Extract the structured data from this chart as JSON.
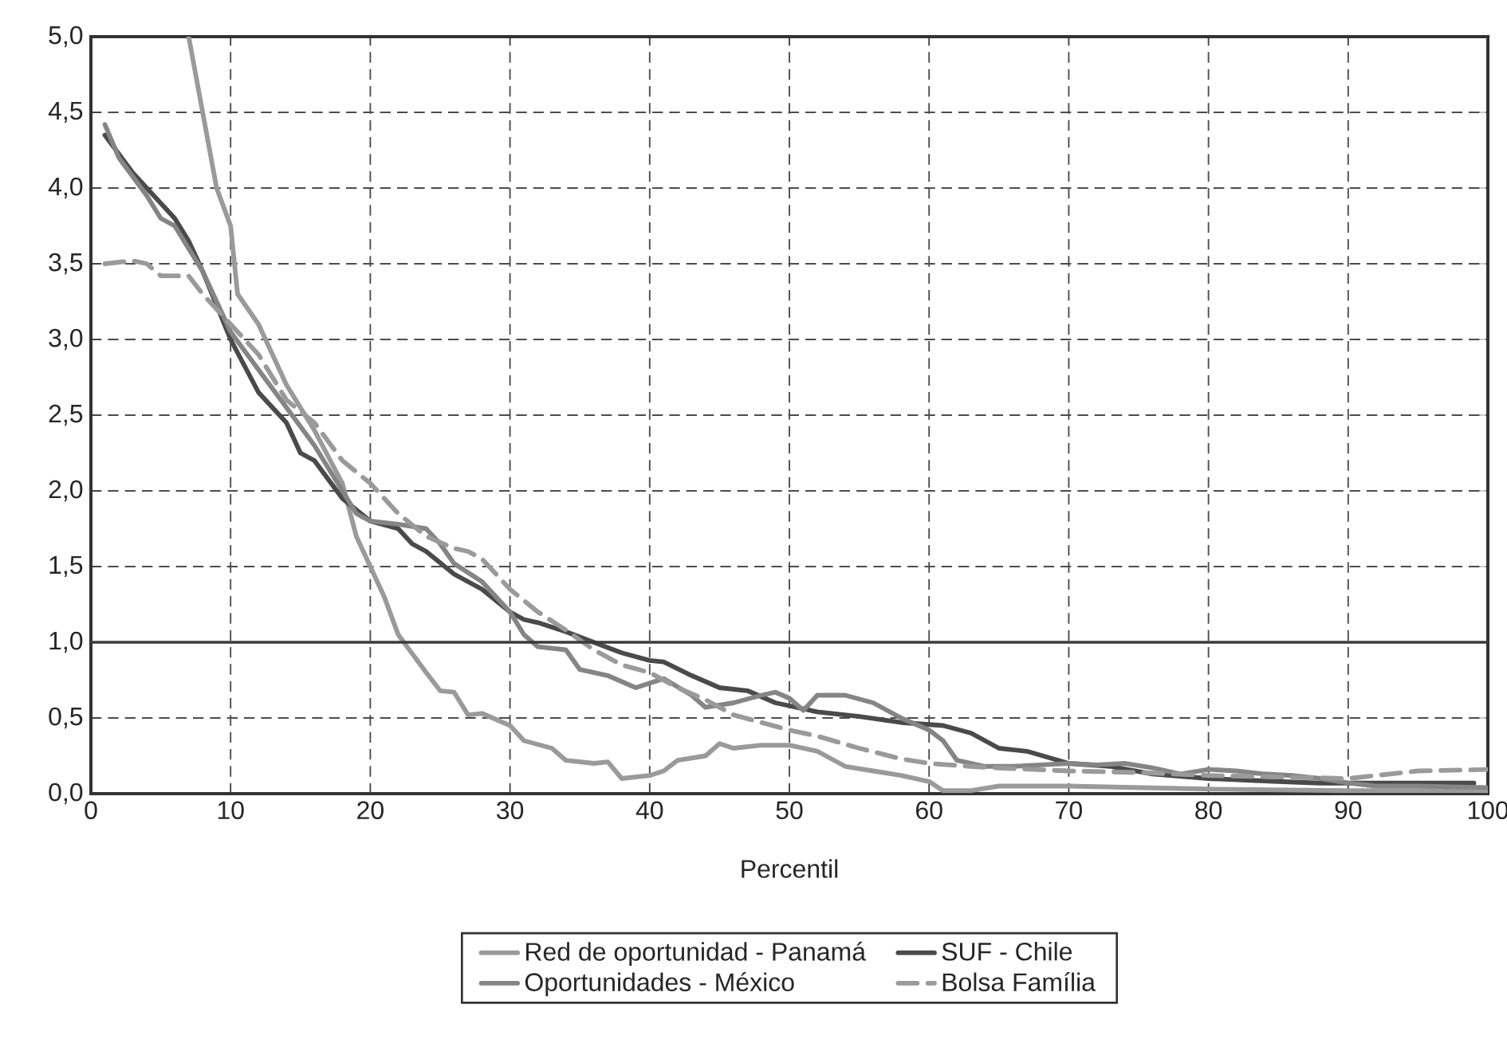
{
  "chart_data": {
    "type": "line",
    "xlabel": "Percentil",
    "xlim": [
      0,
      100
    ],
    "xticks": [
      0,
      10,
      20,
      30,
      40,
      50,
      60,
      70,
      80,
      90,
      100
    ],
    "ylim": [
      0,
      5
    ],
    "yticks": [
      {
        "value": 0,
        "label": "0,0"
      },
      {
        "value": 0.5,
        "label": "0,5"
      },
      {
        "value": 1,
        "label": "1,0"
      },
      {
        "value": 1.5,
        "label": "1,5"
      },
      {
        "value": 2,
        "label": "2,0"
      },
      {
        "value": 2.5,
        "label": "2,5"
      },
      {
        "value": 3,
        "label": "3,0"
      },
      {
        "value": 3.5,
        "label": "3,5"
      },
      {
        "value": 4,
        "label": "4,0"
      },
      {
        "value": 4.5,
        "label": "4,5"
      },
      {
        "value": 5,
        "label": "5,0"
      }
    ],
    "grid": true,
    "legend": "bottom",
    "marker": "none",
    "ref_lines": [
      {
        "axis": "y",
        "value": 1,
        "color": "#3a3a3a",
        "line_style": "solid"
      }
    ],
    "series": [
      {
        "name": "Red de oportunidad - Panamá",
        "color": "#9a9a9a",
        "line_style": "solid",
        "x": [
          7,
          8,
          9,
          10,
          10.5,
          12,
          14,
          16,
          18,
          19,
          20,
          21,
          22,
          24,
          25,
          26,
          27,
          28,
          30,
          31,
          33,
          34,
          36,
          37,
          38,
          40,
          41,
          42,
          44,
          45,
          46,
          48,
          50,
          52,
          54,
          56,
          58,
          60,
          61,
          63,
          65,
          70,
          80,
          90,
          100
        ],
        "values": [
          5.0,
          4.5,
          4.0,
          3.75,
          3.3,
          3.1,
          2.7,
          2.4,
          2.05,
          1.7,
          1.5,
          1.3,
          1.05,
          0.8,
          0.68,
          0.67,
          0.52,
          0.53,
          0.45,
          0.35,
          0.3,
          0.22,
          0.2,
          0.21,
          0.1,
          0.12,
          0.15,
          0.22,
          0.25,
          0.33,
          0.3,
          0.32,
          0.32,
          0.28,
          0.18,
          0.15,
          0.12,
          0.08,
          0.02,
          0.02,
          0.05,
          0.05,
          0.03,
          0.02,
          0.02
        ]
      },
      {
        "name": "SUF - Chile",
        "color": "#4a4a4a",
        "line_style": "solid",
        "x": [
          1,
          3,
          4,
          6,
          7,
          8,
          10,
          12,
          14,
          15,
          16,
          18,
          20,
          22,
          23,
          24,
          26,
          28,
          30,
          31,
          32,
          34,
          36,
          38,
          40,
          41,
          43,
          45,
          47,
          49,
          52,
          55,
          58,
          61,
          63,
          65,
          67,
          70,
          73,
          76,
          80,
          85,
          88,
          90,
          99
        ],
        "values": [
          4.35,
          4.1,
          4.0,
          3.8,
          3.65,
          3.45,
          3.0,
          2.65,
          2.45,
          2.25,
          2.2,
          1.95,
          1.8,
          1.75,
          1.65,
          1.6,
          1.45,
          1.35,
          1.2,
          1.15,
          1.13,
          1.07,
          1.0,
          0.93,
          0.88,
          0.87,
          0.78,
          0.7,
          0.68,
          0.6,
          0.54,
          0.51,
          0.47,
          0.45,
          0.4,
          0.3,
          0.28,
          0.2,
          0.18,
          0.13,
          0.1,
          0.08,
          0.07,
          0.07,
          0.07
        ]
      },
      {
        "name": "Oportunidades - México",
        "color": "#858585",
        "line_style": "solid",
        "x": [
          1,
          2,
          4,
          5,
          6,
          7,
          8,
          10,
          12,
          14,
          16,
          18,
          19,
          20,
          22,
          24,
          25,
          26,
          28,
          30,
          31,
          32,
          34,
          35,
          37,
          39,
          41,
          43,
          44,
          46,
          48,
          49,
          50,
          51,
          52,
          54,
          56,
          58,
          60,
          61,
          62,
          64,
          66,
          68,
          70,
          72,
          74,
          76,
          78,
          80,
          82,
          84,
          86,
          88,
          90,
          92,
          95,
          100
        ],
        "values": [
          4.42,
          4.2,
          3.95,
          3.8,
          3.75,
          3.6,
          3.45,
          3.05,
          2.8,
          2.55,
          2.3,
          2.0,
          1.85,
          1.8,
          1.78,
          1.75,
          1.65,
          1.52,
          1.4,
          1.2,
          1.05,
          0.97,
          0.95,
          0.82,
          0.78,
          0.7,
          0.76,
          0.65,
          0.57,
          0.6,
          0.65,
          0.67,
          0.63,
          0.55,
          0.65,
          0.65,
          0.6,
          0.5,
          0.42,
          0.35,
          0.22,
          0.18,
          0.18,
          0.19,
          0.2,
          0.19,
          0.2,
          0.17,
          0.13,
          0.16,
          0.15,
          0.13,
          0.12,
          0.1,
          0.07,
          0.05,
          0.05,
          0.04
        ]
      },
      {
        "name": "Bolsa Família",
        "color": "#9a9a9a",
        "line_style": "dashed",
        "x": [
          1,
          3,
          4,
          5,
          7,
          8,
          10,
          12,
          14,
          16,
          18,
          20,
          22,
          24,
          26,
          27,
          28,
          30,
          32,
          34,
          36,
          38,
          40,
          42,
          44,
          46,
          48,
          50,
          52,
          55,
          58,
          60,
          63,
          65,
          70,
          75,
          80,
          85,
          90,
          95,
          100
        ],
        "values": [
          3.5,
          3.52,
          3.5,
          3.42,
          3.42,
          3.3,
          3.1,
          2.9,
          2.6,
          2.45,
          2.2,
          2.05,
          1.85,
          1.7,
          1.62,
          1.6,
          1.55,
          1.35,
          1.2,
          1.08,
          0.95,
          0.85,
          0.8,
          0.7,
          0.62,
          0.52,
          0.47,
          0.42,
          0.38,
          0.3,
          0.23,
          0.2,
          0.18,
          0.17,
          0.15,
          0.14,
          0.12,
          0.11,
          0.1,
          0.15,
          0.16
        ]
      }
    ]
  }
}
